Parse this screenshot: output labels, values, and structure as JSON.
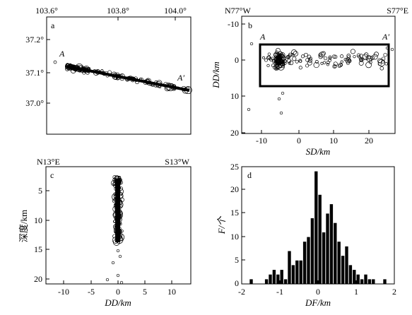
{
  "chart_data": [
    {
      "panel": "a",
      "type": "scatter",
      "x_ticks": [
        "103.6°",
        "103.8°",
        "104.0°"
      ],
      "y_ticks": [
        "37.2°",
        "37.1°",
        "37.0°"
      ],
      "xlim": [
        103.6,
        104.05
      ],
      "ylim": [
        36.92,
        37.25
      ],
      "profile_start_label": "A",
      "profile_end_label": "A′",
      "profile_line": {
        "x": [
          103.73,
          104.04
        ],
        "y": [
          37.12,
          37.05
        ]
      }
    },
    {
      "panel": "b",
      "type": "scatter",
      "top_left_label": "N77°W",
      "top_right_label": "S77°E",
      "xlabel": "SD/km",
      "ylabel": "DD/km",
      "x_ticks": [
        "-10",
        "0",
        "10",
        "20"
      ],
      "y_ticks": [
        "-10",
        "0",
        "10",
        "20"
      ],
      "xlim": [
        -14,
        26
      ],
      "ylim": [
        -12,
        20
      ],
      "y_inverted": true,
      "profile_start_label": "A",
      "profile_end_label": "A′",
      "box": {
        "x": [
          -10,
          25
        ],
        "y": [
          -4,
          7
        ]
      }
    },
    {
      "panel": "c",
      "type": "scatter",
      "top_left_label": "N13°E",
      "top_right_label": "S13°W",
      "xlabel": "DD/km",
      "ylabel": "深度/km",
      "x_ticks": [
        "-10",
        "-5",
        "0",
        "5",
        "10"
      ],
      "y_ticks": [
        "5",
        "10",
        "15",
        "20"
      ],
      "xlim": [
        -13,
        13.5
      ],
      "ylim": [
        1,
        21.5
      ],
      "y_inverted": true
    },
    {
      "panel": "d",
      "type": "bar",
      "xlabel": "DF/km",
      "ylabel": "F/个",
      "x_ticks": [
        "-2",
        "-1",
        "0",
        "1",
        "2"
      ],
      "y_ticks": [
        "0",
        "5",
        "10",
        "15",
        "20",
        "25"
      ],
      "xlim": [
        -2,
        2
      ],
      "ylim": [
        0,
        25
      ],
      "bin_width": 0.1,
      "bins_start": [
        -1.8,
        -1.7,
        -1.6,
        -1.5,
        -1.4,
        -1.3,
        -1.2,
        -1.1,
        -1.0,
        -0.9,
        -0.8,
        -0.7,
        -0.6,
        -0.5,
        -0.4,
        -0.3,
        -0.2,
        -0.1,
        0.0,
        0.1,
        0.2,
        0.3,
        0.4,
        0.5,
        0.6,
        0.7,
        0.8,
        0.9,
        1.0,
        1.1,
        1.2,
        1.3,
        1.4,
        1.5,
        1.6,
        1.7,
        1.8
      ],
      "values": [
        1,
        0,
        0,
        0,
        1,
        2,
        3,
        2,
        3,
        1,
        7,
        4,
        5,
        5,
        9,
        10,
        14,
        24,
        19,
        11,
        15,
        17,
        13,
        9,
        6,
        8,
        4,
        3,
        2,
        1,
        2,
        1,
        1,
        0,
        0,
        1,
        0
      ]
    }
  ]
}
